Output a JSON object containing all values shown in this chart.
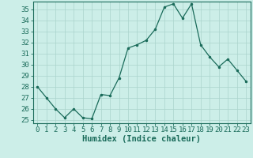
{
  "x": [
    0,
    1,
    2,
    3,
    4,
    5,
    6,
    7,
    8,
    9,
    10,
    11,
    12,
    13,
    14,
    15,
    16,
    17,
    18,
    19,
    20,
    21,
    22,
    23
  ],
  "y": [
    28.0,
    27.0,
    26.0,
    25.2,
    26.0,
    25.2,
    25.1,
    27.3,
    27.2,
    28.8,
    31.5,
    31.8,
    32.2,
    33.2,
    35.2,
    35.5,
    34.2,
    35.5,
    31.8,
    30.7,
    29.8,
    30.5,
    29.5,
    28.5
  ],
  "line_color": "#1a6b5a",
  "marker": ".",
  "marker_size": 3,
  "bg_color": "#cceee8",
  "grid_color": "#aad4cc",
  "xlabel": "Humidex (Indice chaleur)",
  "ylim": [
    25,
    36
  ],
  "xlim": [
    -0.5,
    23.5
  ],
  "yticks": [
    25,
    26,
    27,
    28,
    29,
    30,
    31,
    32,
    33,
    34,
    35
  ],
  "xticks": [
    0,
    1,
    2,
    3,
    4,
    5,
    6,
    7,
    8,
    9,
    10,
    11,
    12,
    13,
    14,
    15,
    16,
    17,
    18,
    19,
    20,
    21,
    22,
    23
  ],
  "tick_label_size": 6.5,
  "xlabel_fontsize": 7.5,
  "axis_color": "#1a6b5a"
}
